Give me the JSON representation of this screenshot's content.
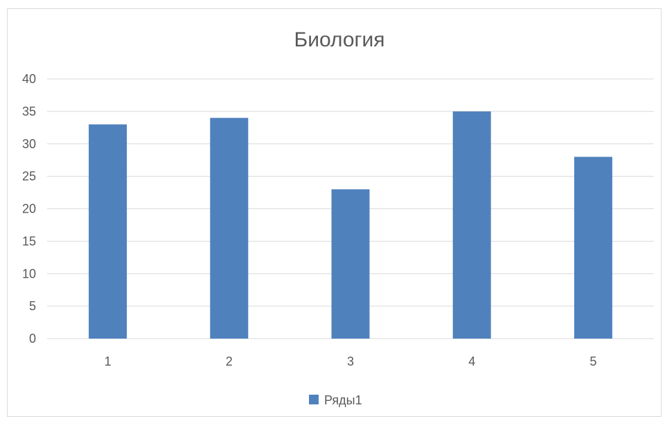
{
  "chart_data": {
    "type": "bar",
    "title": "Биология",
    "xlabel": "",
    "ylabel": "",
    "categories": [
      "1",
      "2",
      "3",
      "4",
      "5"
    ],
    "series": [
      {
        "name": "Ряды1",
        "values": [
          33,
          34,
          23,
          35,
          28
        ],
        "color": "#4f81bd"
      }
    ],
    "ylim": [
      0,
      40
    ],
    "yticks": [
      "0",
      "5",
      "10",
      "15",
      "20",
      "25",
      "30",
      "35",
      "40"
    ],
    "grid": true,
    "legend": "bottom"
  }
}
